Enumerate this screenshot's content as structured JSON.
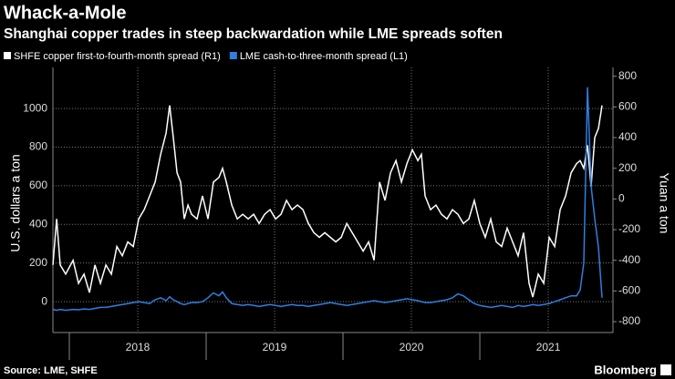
{
  "chart_data": {
    "type": "line",
    "title": "Whack-a-Mole",
    "subtitle": "Shanghai copper trades in steep backwardation while LME spreads soften",
    "ylabel": "U.S. dollars a ton",
    "y2label": "Yuan a ton",
    "source": "Source: LME, SHFE",
    "brand": "Bloomberg",
    "x": [
      2017.88,
      2017.907,
      2017.933,
      2017.973,
      2018.027,
      2018.067,
      2018.107,
      2018.147,
      2018.187,
      2018.227,
      2018.267,
      2018.307,
      2018.347,
      2018.387,
      2018.427,
      2018.467,
      2018.507,
      2018.547,
      2018.587,
      2018.627,
      2018.667,
      2018.707,
      2018.733,
      2018.76,
      2018.787,
      2018.813,
      2018.84,
      2018.867,
      2018.893,
      2018.933,
      2018.973,
      2019.013,
      2019.053,
      2019.093,
      2019.12,
      2019.147,
      2019.187,
      2019.227,
      2019.267,
      2019.307,
      2019.347,
      2019.387,
      2019.427,
      2019.467,
      2019.507,
      2019.547,
      2019.587,
      2019.627,
      2019.667,
      2019.707,
      2019.747,
      2019.787,
      2019.827,
      2019.867,
      2019.907,
      2019.947,
      2019.987,
      2020.027,
      2020.067,
      2020.107,
      2020.147,
      2020.187,
      2020.227,
      2020.267,
      2020.307,
      2020.347,
      2020.387,
      2020.427,
      2020.467,
      2020.507,
      2020.547,
      2020.573,
      2020.6,
      2020.64,
      2020.68,
      2020.72,
      2020.76,
      2020.8,
      2020.84,
      2020.88,
      2020.92,
      2020.96,
      2021.0,
      2021.04,
      2021.08,
      2021.12,
      2021.16,
      2021.2,
      2021.24,
      2021.28,
      2021.32,
      2021.36,
      2021.387,
      2021.427,
      2021.467,
      2021.507,
      2021.547,
      2021.587,
      2021.627,
      2021.667,
      2021.707,
      2021.733,
      2021.76,
      2021.787,
      2021.813,
      2021.84,
      2021.867,
      2021.893
    ],
    "series": [
      {
        "name": "SHFE copper first-to-fourth-month spread (R1)",
        "color": "#ffffff",
        "axis": "y2",
        "values": [
          -430,
          -130,
          -430,
          -490,
          -400,
          -550,
          -490,
          -610,
          -430,
          -550,
          -430,
          -490,
          -310,
          -370,
          -280,
          -310,
          -130,
          -70,
          20,
          110,
          290,
          430,
          610,
          400,
          170,
          110,
          -130,
          -40,
          -100,
          -130,
          20,
          -130,
          110,
          140,
          200,
          110,
          -40,
          -130,
          -100,
          -130,
          -100,
          -160,
          -100,
          -70,
          -130,
          -100,
          -10,
          -70,
          -40,
          -70,
          -160,
          -220,
          -250,
          -220,
          -250,
          -280,
          -250,
          -160,
          -220,
          -280,
          -340,
          -280,
          -400,
          110,
          -10,
          170,
          250,
          110,
          230,
          320,
          250,
          290,
          20,
          -70,
          -40,
          -100,
          -130,
          -70,
          -100,
          -160,
          -130,
          -10,
          -160,
          -250,
          -130,
          -280,
          -310,
          -190,
          -280,
          -370,
          -220,
          -550,
          -640,
          -490,
          -550,
          -250,
          -310,
          -70,
          20,
          170,
          230,
          250,
          200,
          350,
          80,
          400,
          460,
          610
        ]
      },
      {
        "name": "LME cash-to-three-month spread (L1)",
        "color": "#2f7fe0",
        "values": [
          -40,
          -45,
          -40,
          -45,
          -40,
          -42,
          -38,
          -40,
          -35,
          -30,
          -30,
          -25,
          -20,
          -15,
          -10,
          -5,
          0,
          -5,
          -10,
          10,
          20,
          5,
          25,
          10,
          0,
          -10,
          -15,
          -10,
          -5,
          -5,
          0,
          20,
          45,
          30,
          50,
          20,
          -10,
          -15,
          -20,
          -15,
          -20,
          -25,
          -20,
          -15,
          -20,
          -25,
          -20,
          -15,
          -20,
          -20,
          -25,
          -20,
          -15,
          -10,
          -5,
          -10,
          -15,
          -20,
          -15,
          -10,
          -5,
          0,
          5,
          0,
          -5,
          0,
          5,
          10,
          15,
          10,
          5,
          0,
          -5,
          -5,
          0,
          5,
          10,
          20,
          40,
          30,
          10,
          -10,
          -20,
          -25,
          -30,
          -25,
          -20,
          -25,
          -30,
          -20,
          -25,
          -20,
          -15,
          -20,
          -15,
          -10,
          0,
          10,
          20,
          30,
          30,
          60,
          200,
          1110,
          600,
          430,
          280,
          20
        ]
      }
    ],
    "xlim": [
      2017.88,
      2021.973
    ],
    "xticks": [
      {
        "value": 2018.5,
        "label": "2018"
      },
      {
        "value": 2019.5,
        "label": "2019"
      },
      {
        "value": 2020.5,
        "label": "2020"
      },
      {
        "value": 2021.5,
        "label": "2021"
      }
    ],
    "ylim": [
      -160,
      1175
    ],
    "yticks": [
      0,
      200,
      400,
      600,
      800,
      1000
    ],
    "y2lim": [
      -871,
      810
    ],
    "y2ticks": [
      -800,
      -600,
      -400,
      -200,
      0,
      200,
      400,
      600,
      800
    ],
    "grid": true
  }
}
